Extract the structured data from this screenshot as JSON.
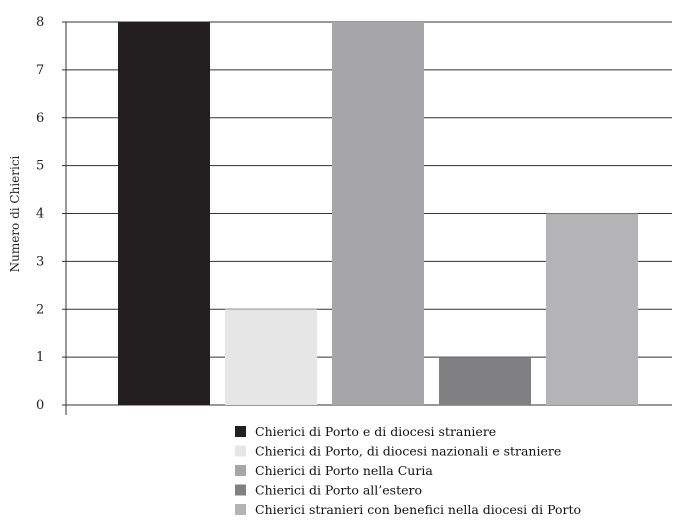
{
  "chart_data": {
    "type": "bar",
    "ylabel": "Numero di Chierici",
    "xlabel": "",
    "ylim": [
      0,
      8
    ],
    "yticks": [
      0,
      1,
      2,
      3,
      4,
      5,
      6,
      7,
      8
    ],
    "grid": "horizontal",
    "legend_position": "bottom",
    "categories": [
      "Chierici di Porto e di diocesi straniere",
      "Chierici di Porto, di diocesi nazionali e straniere",
      "Chierici di Porto nella Curia",
      "Chierici di Porto all’estero",
      "Chierici stranieri con benefici nella diocesi di Porto"
    ],
    "values": [
      8,
      2,
      8,
      1,
      4
    ],
    "colors": [
      "#231f20",
      "#e6e6e7",
      "#a6a6a8",
      "#808082",
      "#b4b4b6"
    ]
  }
}
